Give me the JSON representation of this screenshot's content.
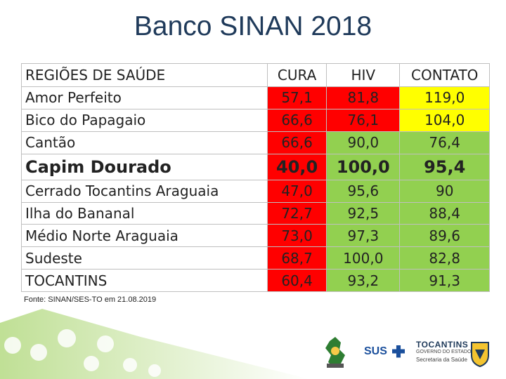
{
  "title": "Banco SINAN 2018",
  "table": {
    "headers": [
      "REGIÕES DE SAÚDE",
      "CURA",
      "HIV",
      "CONTATO"
    ],
    "rows": [
      {
        "region": "Amor Perfeito",
        "cura": "57,1",
        "hiv": "81,8",
        "contato": "119,0",
        "colors": [
          "#ff0000",
          "#ff0000",
          "#ffff00"
        ]
      },
      {
        "region": "Bico do Papagaio",
        "cura": "66,6",
        "hiv": "76,1",
        "contato": "104,0",
        "colors": [
          "#ff0000",
          "#ff0000",
          "#ffff00"
        ]
      },
      {
        "region": "Cantão",
        "cura": "66,6",
        "hiv": "90,0",
        "contato": "76,4",
        "colors": [
          "#ff0000",
          "#92d050",
          "#92d050"
        ]
      },
      {
        "region": "Capim Dourado",
        "cura": "40,0",
        "hiv": "100,0",
        "contato": "95,4",
        "colors": [
          "#ff0000",
          "#92d050",
          "#92d050"
        ],
        "bold": true
      },
      {
        "region": "Cerrado Tocantins Araguaia",
        "cura": "47,0",
        "hiv": "95,6",
        "contato": "90",
        "colors": [
          "#ff0000",
          "#92d050",
          "#92d050"
        ]
      },
      {
        "region": "Ilha do Bananal",
        "cura": "72,7",
        "hiv": "92,5",
        "contato": "88,4",
        "colors": [
          "#ff0000",
          "#92d050",
          "#92d050"
        ]
      },
      {
        "region": "Médio Norte Araguaia",
        "cura": "73,0",
        "hiv": "97,3",
        "contato": "89,6",
        "colors": [
          "#ff0000",
          "#92d050",
          "#92d050"
        ]
      },
      {
        "region": "Sudeste",
        "cura": "68,7",
        "hiv": "100,0",
        "contato": "82,8",
        "colors": [
          "#ff0000",
          "#92d050",
          "#92d050"
        ]
      },
      {
        "region": "TOCANTINS",
        "cura": "60,4",
        "hiv": "93,2",
        "contato": "91,3",
        "colors": [
          "#ff0000",
          "#92d050",
          "#92d050"
        ]
      }
    ]
  },
  "footnote": "Fonte: SINAN/SES-TO em 21.08.2019",
  "logos": {
    "sus": "SUS",
    "tocantins": "TOCANTINS",
    "governo": "GOVERNO DO ESTADO",
    "secretaria": "Secretaria da Saúde"
  },
  "colors": {
    "title": "#1f3a5a",
    "red": "#ff0000",
    "yellow": "#ffff00",
    "green": "#92d050",
    "header_bg": "#ffffff",
    "deco_green": "#8cc63f"
  }
}
